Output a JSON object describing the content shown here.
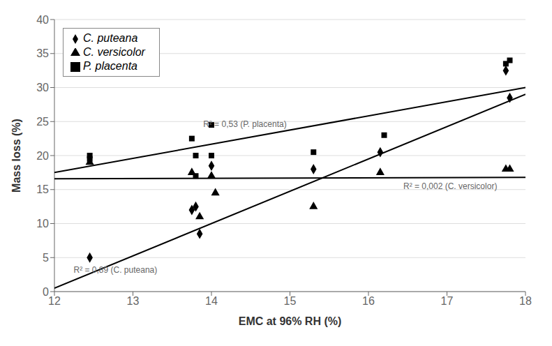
{
  "chart_data": {
    "type": "scatter",
    "xlabel": "EMC at 96% RH (%)",
    "ylabel": "Mass loss (%)",
    "xlim": [
      12,
      18
    ],
    "ylim": [
      0,
      40
    ],
    "xticks": [
      12,
      13,
      14,
      15,
      16,
      17,
      18
    ],
    "yticks": [
      0,
      5,
      10,
      15,
      20,
      25,
      30,
      35,
      40
    ],
    "grid": "y",
    "legend": "upper left",
    "series": [
      {
        "type": "line",
        "color": "#000000",
        "x": [
          12.0,
          18.0
        ],
        "values": [
          0.5,
          29.0
        ]
      },
      {
        "type": "line",
        "color": "#000000",
        "x": [
          12.0,
          18.0
        ],
        "values": [
          17.5,
          30.0
        ]
      },
      {
        "type": "line",
        "color": "#000000",
        "x": [
          12.0,
          18.0
        ],
        "values": [
          16.6,
          16.8
        ]
      },
      {
        "name": "C. puteana",
        "type": "scatter",
        "marker": "diamond",
        "color": "#000000",
        "x": [
          12.45,
          13.75,
          13.8,
          13.85,
          14.0,
          15.3,
          16.15,
          17.75,
          17.8
        ],
        "values": [
          5.0,
          12.0,
          12.5,
          8.5,
          18.5,
          18.0,
          20.5,
          32.5,
          28.5
        ]
      },
      {
        "name": "P. placenta",
        "type": "scatter",
        "marker": "square",
        "color": "#000000",
        "x": [
          12.45,
          12.45,
          13.75,
          13.8,
          13.8,
          14.0,
          14.0,
          15.3,
          16.2,
          17.75,
          17.8
        ],
        "values": [
          20.0,
          19.5,
          22.5,
          20.0,
          17.0,
          24.5,
          20.0,
          20.5,
          23.0,
          33.5,
          34.0
        ]
      },
      {
        "name": "C. versicolor",
        "type": "scatter",
        "marker": "triangle",
        "color": "#000000",
        "x": [
          12.45,
          13.75,
          13.85,
          14.0,
          14.05,
          15.3,
          16.15,
          17.75,
          17.8
        ],
        "values": [
          19.0,
          17.5,
          11.0,
          17.0,
          14.5,
          12.5,
          17.5,
          18.0,
          18.0
        ]
      }
    ],
    "annotations": [
      {
        "text": "R² = 0,89 (C. puteana)",
        "x": 12.2,
        "y": 3.2,
        "color": "#666666"
      },
      {
        "text": "R² = 0,53 (P. placenta)",
        "x": 13.85,
        "y": 24.6,
        "color": "#666666"
      },
      {
        "text": "R² = 0,002 (C. versicolor)",
        "x": 16.4,
        "y": 15.5,
        "color": "#666666"
      }
    ]
  }
}
